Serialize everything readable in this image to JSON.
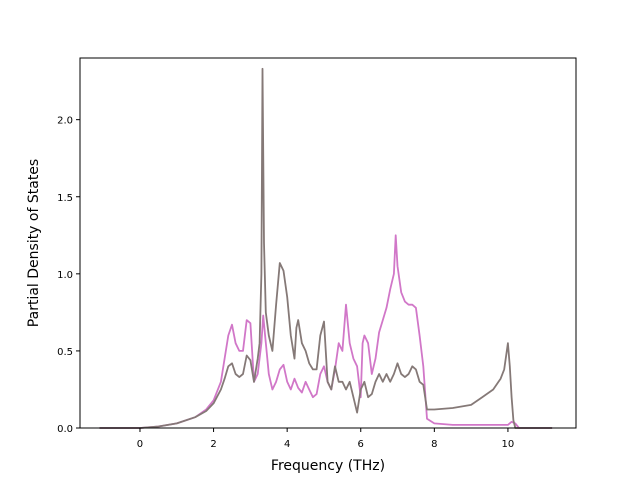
{
  "chart_data": {
    "type": "line",
    "title": "",
    "xlabel": "Frequency (THz)",
    "ylabel": "Partial Density of States",
    "xlim": [
      -1.63,
      11.85
    ],
    "ylim": [
      0.0,
      2.4
    ],
    "xticks": [
      0,
      2,
      4,
      6,
      8,
      10
    ],
    "xtick_labels": [
      "0",
      "2",
      "4",
      "6",
      "8",
      "10"
    ],
    "yticks": [
      0.0,
      0.5,
      1.0,
      1.5,
      2.0
    ],
    "ytick_labels": [
      "0.0",
      "0.5",
      "1.0",
      "1.5",
      "2.0"
    ],
    "grid": false,
    "legend": "none",
    "series": [
      {
        "color": "#d177c8",
        "x": [
          -1.1,
          0.0,
          0.5,
          1.0,
          1.5,
          1.8,
          2.0,
          2.2,
          2.3,
          2.4,
          2.5,
          2.6,
          2.7,
          2.8,
          2.9,
          3.0,
          3.1,
          3.2,
          3.3,
          3.35,
          3.4,
          3.5,
          3.6,
          3.7,
          3.8,
          3.9,
          4.0,
          4.1,
          4.2,
          4.3,
          4.4,
          4.5,
          4.6,
          4.7,
          4.8,
          4.9,
          5.0,
          5.1,
          5.2,
          5.3,
          5.4,
          5.5,
          5.6,
          5.7,
          5.8,
          5.9,
          6.0,
          6.05,
          6.1,
          6.2,
          6.3,
          6.4,
          6.5,
          6.6,
          6.7,
          6.8,
          6.9,
          6.95,
          7.0,
          7.1,
          7.2,
          7.3,
          7.4,
          7.5,
          7.6,
          7.7,
          7.8,
          8.0,
          8.5,
          9.0,
          9.5,
          10.0,
          10.1,
          10.2,
          10.3,
          11.2
        ],
        "y": [
          0.0,
          0.0,
          0.01,
          0.03,
          0.07,
          0.12,
          0.18,
          0.3,
          0.45,
          0.6,
          0.67,
          0.55,
          0.5,
          0.5,
          0.7,
          0.68,
          0.3,
          0.35,
          0.55,
          0.73,
          0.6,
          0.35,
          0.25,
          0.3,
          0.38,
          0.41,
          0.3,
          0.25,
          0.32,
          0.26,
          0.23,
          0.3,
          0.25,
          0.2,
          0.22,
          0.35,
          0.4,
          0.3,
          0.25,
          0.38,
          0.55,
          0.5,
          0.8,
          0.55,
          0.45,
          0.4,
          0.2,
          0.55,
          0.6,
          0.55,
          0.35,
          0.45,
          0.62,
          0.7,
          0.78,
          0.9,
          1.0,
          1.25,
          1.05,
          0.88,
          0.82,
          0.8,
          0.8,
          0.78,
          0.6,
          0.4,
          0.06,
          0.03,
          0.02,
          0.02,
          0.02,
          0.02,
          0.04,
          0.03,
          0.0,
          0.0
        ]
      },
      {
        "color": "#857977",
        "x": [
          -1.1,
          0.0,
          0.5,
          1.0,
          1.5,
          1.8,
          2.0,
          2.2,
          2.3,
          2.4,
          2.5,
          2.6,
          2.7,
          2.8,
          2.9,
          3.0,
          3.1,
          3.2,
          3.25,
          3.3,
          3.33,
          3.37,
          3.42,
          3.5,
          3.6,
          3.7,
          3.8,
          3.9,
          4.0,
          4.1,
          4.2,
          4.25,
          4.3,
          4.4,
          4.5,
          4.6,
          4.7,
          4.8,
          4.9,
          5.0,
          5.1,
          5.2,
          5.3,
          5.4,
          5.5,
          5.6,
          5.7,
          5.8,
          5.9,
          6.0,
          6.1,
          6.2,
          6.3,
          6.4,
          6.5,
          6.6,
          6.7,
          6.8,
          6.9,
          7.0,
          7.1,
          7.2,
          7.3,
          7.4,
          7.5,
          7.6,
          7.7,
          7.8,
          8.0,
          8.5,
          9.0,
          9.3,
          9.6,
          9.8,
          9.9,
          10.0,
          10.05,
          10.1,
          10.15,
          10.2,
          10.3,
          11.2
        ],
        "y": [
          0.0,
          0.0,
          0.01,
          0.03,
          0.07,
          0.11,
          0.16,
          0.25,
          0.32,
          0.4,
          0.42,
          0.35,
          0.33,
          0.35,
          0.47,
          0.44,
          0.3,
          0.45,
          0.55,
          1.0,
          2.33,
          1.2,
          0.75,
          0.6,
          0.5,
          0.8,
          1.07,
          1.02,
          0.85,
          0.6,
          0.45,
          0.65,
          0.7,
          0.55,
          0.5,
          0.42,
          0.38,
          0.38,
          0.6,
          0.69,
          0.3,
          0.25,
          0.4,
          0.3,
          0.3,
          0.25,
          0.3,
          0.2,
          0.1,
          0.25,
          0.3,
          0.2,
          0.22,
          0.3,
          0.35,
          0.3,
          0.35,
          0.3,
          0.35,
          0.42,
          0.35,
          0.33,
          0.35,
          0.4,
          0.38,
          0.3,
          0.28,
          0.12,
          0.12,
          0.13,
          0.15,
          0.2,
          0.25,
          0.32,
          0.38,
          0.55,
          0.4,
          0.2,
          0.05,
          0.0,
          0.0,
          0.0
        ]
      }
    ]
  }
}
